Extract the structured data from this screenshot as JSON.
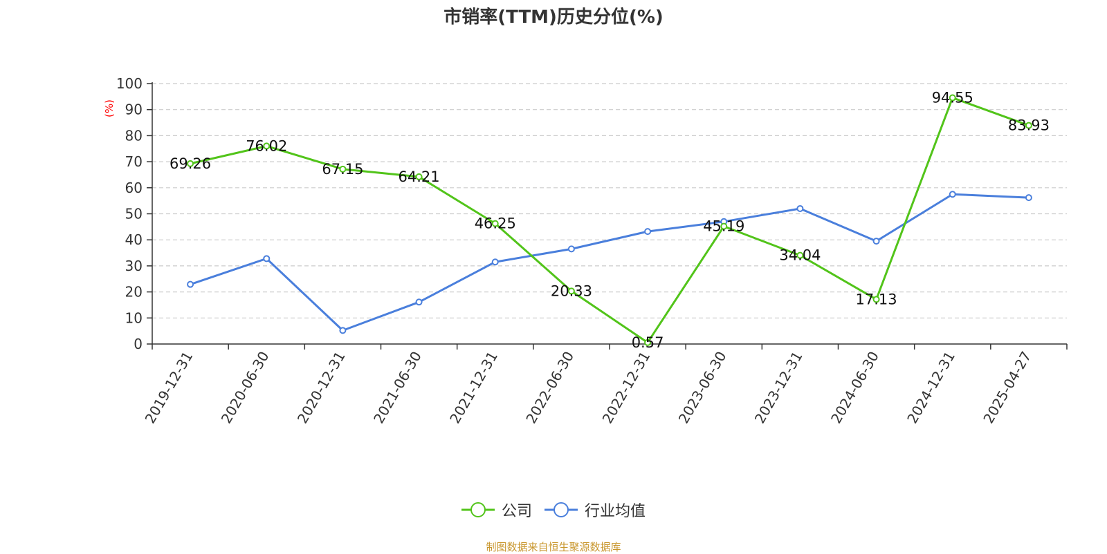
{
  "chart_data": {
    "type": "line",
    "title": "市销率(TTM)历史分位(%)",
    "ylabel": "(%)",
    "ylim": [
      0,
      100
    ],
    "yticks": [
      0,
      10,
      20,
      30,
      40,
      50,
      60,
      70,
      80,
      90,
      100
    ],
    "grid": true,
    "legend_position": "bottom",
    "categories": [
      "2019-12-31",
      "2020-06-30",
      "2020-12-31",
      "2021-06-30",
      "2021-12-31",
      "2022-06-30",
      "2022-12-31",
      "2023-06-30",
      "2023-12-31",
      "2024-06-30",
      "2024-12-31",
      "2025-04-27"
    ],
    "series": [
      {
        "name": "公司",
        "color": "#52c41a",
        "values": [
          69.26,
          76.02,
          67.15,
          64.21,
          46.25,
          20.33,
          0.57,
          45.19,
          34.04,
          17.13,
          94.55,
          83.93
        ],
        "labels": [
          "69.26",
          "76.02",
          "67.15",
          "64.21",
          "46.25",
          "20.33",
          "0.57",
          "45.19",
          "34.04",
          "17.13",
          "94.55",
          "83.93"
        ]
      },
      {
        "name": "行业均值",
        "color": "#4a7fdc",
        "values": [
          22.9,
          32.8,
          5.2,
          16.1,
          31.5,
          36.5,
          43.2,
          47.0,
          52.0,
          39.5,
          57.5,
          56.2
        ]
      }
    ]
  },
  "source": "制图数据来自恒生聚源数据库"
}
